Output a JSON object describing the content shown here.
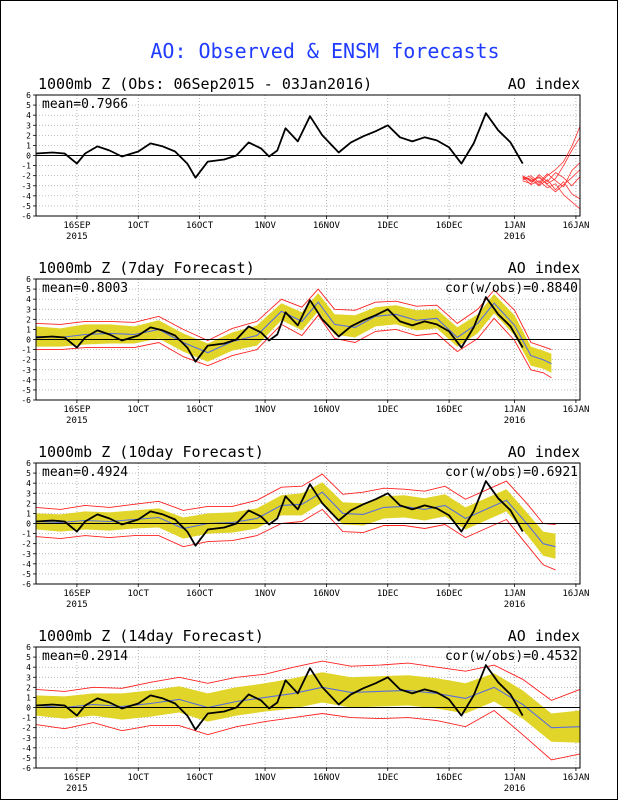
{
  "main_title": "AO: Observed & ENSM forecasts",
  "colors": {
    "title": "#1f3bff",
    "observed": "#000000",
    "ensemble_mean": "#5a6fd8",
    "spread_band": "#e2d52a",
    "min_max": "#ff2020",
    "members": "#ff3030"
  },
  "x_ticks": [
    {
      "label": "16SEP",
      "sub": "2015"
    },
    {
      "label": "1OCT",
      "sub": ""
    },
    {
      "label": "16OCT",
      "sub": ""
    },
    {
      "label": "1NOV",
      "sub": ""
    },
    {
      "label": "16NOV",
      "sub": ""
    },
    {
      "label": "1DEC",
      "sub": ""
    },
    {
      "label": "16DEC",
      "sub": ""
    },
    {
      "label": "1JAN",
      "sub": "2016"
    },
    {
      "label": "16JAN",
      "sub": ""
    }
  ],
  "y_ticks": [
    "6",
    "5",
    "4",
    "3",
    "2",
    "1",
    "0",
    "-1",
    "-2",
    "-3",
    "-4",
    "-5",
    "-6"
  ],
  "chart_data": [
    {
      "type": "line",
      "title": "1000mb Z (Obs: 06Sep2015 - 03Jan2016)",
      "right_label": "AO index",
      "mean_label": "mean=0.7966",
      "cor_label": "",
      "ylim": [
        -6,
        6
      ],
      "x_range": [
        "2015-09-06",
        "2016-01-17"
      ],
      "observed": {
        "x": [
          "2015-09-06",
          "2015-09-10",
          "2015-09-13",
          "2015-09-16",
          "2015-09-18",
          "2015-09-21",
          "2015-09-24",
          "2015-09-27",
          "2015-10-01",
          "2015-10-04",
          "2015-10-07",
          "2015-10-10",
          "2015-10-13",
          "2015-10-15",
          "2015-10-18",
          "2015-10-22",
          "2015-10-25",
          "2015-10-28",
          "2015-10-31",
          "2015-11-02",
          "2015-11-04",
          "2015-11-06",
          "2015-11-09",
          "2015-11-12",
          "2015-11-15",
          "2015-11-19",
          "2015-11-22",
          "2015-11-25",
          "2015-11-28",
          "2015-12-01",
          "2015-12-04",
          "2015-12-07",
          "2015-12-10",
          "2015-12-13",
          "2015-12-16",
          "2015-12-19",
          "2015-12-22",
          "2015-12-25",
          "2015-12-28",
          "2015-12-31",
          "2016-01-03"
        ],
        "y": [
          0.2,
          0.3,
          0.2,
          -0.8,
          0.2,
          0.9,
          0.5,
          -0.1,
          0.4,
          1.2,
          0.9,
          0.4,
          -0.8,
          -2.2,
          -0.6,
          -0.4,
          0,
          1.3,
          0.7,
          -0.1,
          0.5,
          2.7,
          1.4,
          3.9,
          2.0,
          0.3,
          1.3,
          1.9,
          2.4,
          3.0,
          1.8,
          1.4,
          1.8,
          1.5,
          0.8,
          -0.8,
          1.2,
          4.2,
          2.5,
          1.3,
          -0.8
        ]
      },
      "members": [
        {
          "x": [
            0,
            2,
            4,
            6,
            8,
            10,
            12,
            14
          ],
          "y": [
            -2.0,
            -2.6,
            -2.2,
            -2.8,
            -2.3,
            -1.0,
            0.5,
            1.8
          ]
        },
        {
          "x": [
            0,
            2,
            4,
            6,
            8,
            10,
            12,
            14
          ],
          "y": [
            -2.2,
            -2.4,
            -3.0,
            -2.4,
            -3.4,
            -2.6,
            -3.8,
            -4.3
          ]
        },
        {
          "x": [
            0,
            2,
            4,
            6,
            8,
            10,
            12,
            14
          ],
          "y": [
            -2.3,
            -2.0,
            -2.7,
            -1.8,
            -2.5,
            -3.1,
            -1.5,
            -0.7
          ]
        },
        {
          "x": [
            0,
            2,
            4,
            6,
            8,
            10,
            12,
            14
          ],
          "y": [
            -2.5,
            -2.8,
            -1.9,
            -2.6,
            -1.7,
            -2.2,
            -3.0,
            -2.1
          ]
        },
        {
          "x": [
            0,
            2,
            4,
            6,
            8,
            10,
            12,
            14
          ],
          "y": [
            -2.1,
            -2.9,
            -2.5,
            -3.2,
            -2.8,
            -3.9,
            -4.6,
            -5.3
          ]
        },
        {
          "x": [
            0,
            2,
            4,
            6,
            8,
            10,
            12,
            14
          ],
          "y": [
            -2.4,
            -2.2,
            -2.9,
            -2.0,
            -1.4,
            -0.6,
            0.9,
            2.9
          ]
        },
        {
          "x": [
            0,
            2,
            4,
            6,
            8,
            10,
            12,
            14
          ],
          "y": [
            -2.0,
            -2.5,
            -2.1,
            -2.9,
            -3.6,
            -2.9,
            -2.2,
            -1.4
          ]
        }
      ]
    },
    {
      "type": "line",
      "title": "1000mb Z (7day Forecast)",
      "right_label": "AO index",
      "mean_label": "mean=0.8003",
      "cor_label": "cor(w/obs)=0.8840",
      "ylim": [
        -6,
        6
      ],
      "x_range": [
        "2015-09-06",
        "2016-01-17"
      ],
      "observed": {
        "x": [
          "2015-09-06",
          "2015-09-10",
          "2015-09-13",
          "2015-09-16",
          "2015-09-18",
          "2015-09-21",
          "2015-09-24",
          "2015-09-27",
          "2015-10-01",
          "2015-10-04",
          "2015-10-07",
          "2015-10-10",
          "2015-10-13",
          "2015-10-15",
          "2015-10-18",
          "2015-10-22",
          "2015-10-25",
          "2015-10-28",
          "2015-10-31",
          "2015-11-02",
          "2015-11-04",
          "2015-11-06",
          "2015-11-09",
          "2015-11-12",
          "2015-11-15",
          "2015-11-19",
          "2015-11-22",
          "2015-11-25",
          "2015-11-28",
          "2015-12-01",
          "2015-12-04",
          "2015-12-07",
          "2015-12-10",
          "2015-12-13",
          "2015-12-16",
          "2015-12-19",
          "2015-12-22",
          "2015-12-25",
          "2015-12-28",
          "2015-12-31",
          "2016-01-03"
        ],
        "y": [
          0.2,
          0.3,
          0.2,
          -0.8,
          0.2,
          0.9,
          0.5,
          -0.1,
          0.4,
          1.2,
          0.9,
          0.4,
          -0.8,
          -2.2,
          -0.6,
          -0.4,
          0,
          1.3,
          0.7,
          -0.1,
          0.5,
          2.7,
          1.4,
          3.9,
          2.0,
          0.3,
          1.3,
          1.9,
          2.4,
          3.0,
          1.8,
          1.4,
          1.8,
          1.5,
          0.8,
          -0.8,
          1.2,
          4.2,
          2.5,
          1.3,
          -0.8
        ]
      },
      "ens_mean": {
        "x": [
          "2015-09-06",
          "2015-09-12",
          "2015-09-18",
          "2015-09-24",
          "2015-09-30",
          "2015-10-06",
          "2015-10-12",
          "2015-10-18",
          "2015-10-24",
          "2015-10-30",
          "2015-11-05",
          "2015-11-10",
          "2015-11-14",
          "2015-11-18",
          "2015-11-23",
          "2015-11-28",
          "2015-12-03",
          "2015-12-08",
          "2015-12-13",
          "2015-12-18",
          "2015-12-23",
          "2015-12-27",
          "2016-01-01",
          "2016-01-05",
          "2016-01-08",
          "2016-01-10"
        ],
        "y": [
          0.3,
          0.2,
          0.5,
          0.6,
          0.5,
          1.0,
          -0.3,
          -1.3,
          -0.2,
          0.4,
          2.8,
          1.8,
          3.7,
          1.5,
          1.2,
          2.3,
          2.5,
          1.9,
          2.1,
          0.2,
          1.6,
          3.6,
          1.4,
          -1.6,
          -2.0,
          -2.4
        ]
      },
      "band_upper": [
        1.3,
        1.1,
        1.5,
        1.5,
        1.3,
        1.9,
        0.6,
        -0.4,
        0.7,
        1.4,
        3.6,
        2.7,
        4.6,
        2.5,
        2.4,
        3.2,
        3.4,
        2.9,
        3.0,
        1.2,
        2.5,
        4.5,
        2.4,
        -0.7,
        -1.1,
        -1.4
      ],
      "band_lower": [
        -0.7,
        -0.7,
        -0.5,
        -0.4,
        -0.4,
        0.1,
        -1.2,
        -2.2,
        -1.1,
        -0.6,
        1.9,
        0.9,
        2.8,
        0.5,
        0.2,
        1.3,
        1.5,
        0.9,
        1.1,
        -0.7,
        0.6,
        2.6,
        0.4,
        -2.6,
        -2.9,
        -3.3
      ],
      "max_line": [
        1.6,
        1.5,
        1.8,
        1.8,
        1.7,
        2.3,
        1.0,
        -0.1,
        1.1,
        1.8,
        4.0,
        3.2,
        5.0,
        3.0,
        2.9,
        3.7,
        3.8,
        3.3,
        3.4,
        1.6,
        3.0,
        4.9,
        2.9,
        -0.3,
        -0.7,
        -1.0
      ],
      "min_line": [
        -1.0,
        -1.0,
        -0.8,
        -0.8,
        -0.8,
        -0.3,
        -1.7,
        -2.6,
        -1.6,
        -1.0,
        1.5,
        0.4,
        2.4,
        0.1,
        -0.3,
        0.8,
        1.0,
        0.4,
        0.6,
        -1.2,
        0.1,
        2.1,
        -0.1,
        -3.0,
        -3.3,
        -3.8
      ]
    },
    {
      "type": "line",
      "title": "1000mb Z (10day Forecast)",
      "right_label": "AO index",
      "mean_label": "mean=0.4924",
      "cor_label": "cor(w/obs)=0.6921",
      "ylim": [
        -6,
        6
      ],
      "x_range": [
        "2015-09-06",
        "2016-01-17"
      ],
      "observed": {
        "x": [
          "2015-09-06",
          "2015-09-10",
          "2015-09-13",
          "2015-09-16",
          "2015-09-18",
          "2015-09-21",
          "2015-09-24",
          "2015-09-27",
          "2015-10-01",
          "2015-10-04",
          "2015-10-07",
          "2015-10-10",
          "2015-10-13",
          "2015-10-15",
          "2015-10-18",
          "2015-10-22",
          "2015-10-25",
          "2015-10-28",
          "2015-10-31",
          "2015-11-02",
          "2015-11-04",
          "2015-11-06",
          "2015-11-09",
          "2015-11-12",
          "2015-11-15",
          "2015-11-19",
          "2015-11-22",
          "2015-11-25",
          "2015-11-28",
          "2015-12-01",
          "2015-12-04",
          "2015-12-07",
          "2015-12-10",
          "2015-12-13",
          "2015-12-16",
          "2015-12-19",
          "2015-12-22",
          "2015-12-25",
          "2015-12-28",
          "2015-12-31",
          "2016-01-03"
        ],
        "y": [
          0.2,
          0.3,
          0.2,
          -0.8,
          0.2,
          0.9,
          0.5,
          -0.1,
          0.4,
          1.2,
          0.9,
          0.4,
          -0.8,
          -2.2,
          -0.6,
          -0.4,
          0,
          1.3,
          0.7,
          -0.1,
          0.5,
          2.7,
          1.4,
          3.9,
          2.0,
          0.3,
          1.3,
          1.9,
          2.4,
          3.0,
          1.8,
          1.4,
          1.8,
          1.5,
          0.8,
          -0.8,
          1.2,
          4.2,
          2.5,
          1.3,
          -0.8
        ]
      },
      "ens_mean": {
        "x": [
          "2015-09-06",
          "2015-09-12",
          "2015-09-18",
          "2015-09-24",
          "2015-09-30",
          "2015-10-06",
          "2015-10-12",
          "2015-10-18",
          "2015-10-24",
          "2015-10-30",
          "2015-11-05",
          "2015-11-10",
          "2015-11-15",
          "2015-11-20",
          "2015-11-25",
          "2015-11-30",
          "2015-12-05",
          "2015-12-10",
          "2015-12-15",
          "2015-12-20",
          "2015-12-25",
          "2015-12-30",
          "2016-01-04",
          "2016-01-08",
          "2016-01-11"
        ],
        "y": [
          0.2,
          0.1,
          0.3,
          0.2,
          0.4,
          0.6,
          -0.5,
          0.0,
          0.1,
          0.5,
          1.8,
          1.9,
          3.1,
          1.0,
          0.9,
          1.6,
          1.7,
          1.4,
          1.8,
          0.5,
          1.4,
          2.3,
          0.0,
          -2.0,
          -2.3
        ]
      },
      "band_upper": [
        1.0,
        0.9,
        1.2,
        1.1,
        1.3,
        1.5,
        0.6,
        1.0,
        1.1,
        1.5,
        2.8,
        3.0,
        4.1,
        2.1,
        2.0,
        2.7,
        2.8,
        2.5,
        2.9,
        1.6,
        2.5,
        3.4,
        1.1,
        -0.8,
        -1.0
      ],
      "band_lower": [
        -0.6,
        -0.8,
        -0.6,
        -0.7,
        -0.5,
        -0.4,
        -1.5,
        -1.0,
        -0.9,
        -0.5,
        0.8,
        0.8,
        2.1,
        -0.1,
        -0.2,
        0.5,
        0.6,
        0.3,
        0.7,
        -0.6,
        0.3,
        1.2,
        -1.1,
        -3.2,
        -3.5
      ],
      "max_line": [
        1.6,
        1.4,
        1.8,
        1.6,
        1.9,
        2.2,
        1.3,
        1.7,
        1.7,
        2.3,
        3.6,
        3.7,
        4.9,
        2.9,
        3.1,
        3.5,
        3.4,
        3.2,
        3.7,
        2.4,
        3.3,
        4.2,
        2.0,
        0.0,
        -0.1
      ],
      "min_line": [
        -1.3,
        -1.5,
        -1.2,
        -1.4,
        -1.2,
        -1.2,
        -2.3,
        -1.8,
        -1.7,
        -1.2,
        0.0,
        0.2,
        1.4,
        -0.8,
        -0.9,
        -0.2,
        -0.2,
        -0.5,
        -0.1,
        -1.4,
        -0.5,
        0.4,
        -2.1,
        -4.1,
        -4.6
      ]
    },
    {
      "type": "line",
      "title": "1000mb Z (14day Forecast)",
      "right_label": "AO index",
      "mean_label": "mean=0.2914",
      "cor_label": "cor(w/obs)=0.4532",
      "ylim": [
        -6,
        6
      ],
      "x_range": [
        "2015-09-06",
        "2016-01-17"
      ],
      "observed": {
        "x": [
          "2015-09-06",
          "2015-09-10",
          "2015-09-13",
          "2015-09-16",
          "2015-09-18",
          "2015-09-21",
          "2015-09-24",
          "2015-09-27",
          "2015-10-01",
          "2015-10-04",
          "2015-10-07",
          "2015-10-10",
          "2015-10-13",
          "2015-10-15",
          "2015-10-18",
          "2015-10-22",
          "2015-10-25",
          "2015-10-28",
          "2015-10-31",
          "2015-11-02",
          "2015-11-04",
          "2015-11-06",
          "2015-11-09",
          "2015-11-12",
          "2015-11-15",
          "2015-11-19",
          "2015-11-22",
          "2015-11-25",
          "2015-11-28",
          "2015-12-01",
          "2015-12-04",
          "2015-12-07",
          "2015-12-10",
          "2015-12-13",
          "2015-12-16",
          "2015-12-19",
          "2015-12-22",
          "2015-12-25",
          "2015-12-28",
          "2015-12-31",
          "2016-01-03"
        ],
        "y": [
          0.2,
          0.3,
          0.2,
          -0.8,
          0.2,
          0.9,
          0.5,
          -0.1,
          0.4,
          1.2,
          0.9,
          0.4,
          -0.8,
          -2.2,
          -0.6,
          -0.4,
          0,
          1.3,
          0.7,
          -0.1,
          0.5,
          2.7,
          1.4,
          3.9,
          2.0,
          0.3,
          1.3,
          1.9,
          2.4,
          3.0,
          1.8,
          1.4,
          1.8,
          1.5,
          0.8,
          -0.8,
          1.2,
          4.2,
          2.5,
          1.3,
          -0.8
        ]
      },
      "ens_mean": {
        "x": [
          "2015-09-06",
          "2015-09-13",
          "2015-09-20",
          "2015-09-27",
          "2015-10-04",
          "2015-10-11",
          "2015-10-18",
          "2015-10-25",
          "2015-11-01",
          "2015-11-08",
          "2015-11-15",
          "2015-11-22",
          "2015-11-29",
          "2015-12-06",
          "2015-12-13",
          "2015-12-20",
          "2015-12-27",
          "2016-01-03",
          "2016-01-10",
          "2016-01-17"
        ],
        "y": [
          0.2,
          0.0,
          0.3,
          0.1,
          0.4,
          0.8,
          0.0,
          0.6,
          1.0,
          1.4,
          2.0,
          1.5,
          1.6,
          1.7,
          1.4,
          0.9,
          2.0,
          0.3,
          -2.0,
          -1.9
        ]
      },
      "band_upper": [
        1.2,
        1.1,
        1.4,
        1.4,
        1.7,
        2.1,
        1.4,
        2.0,
        2.4,
        2.9,
        3.5,
        3.0,
        3.1,
        3.2,
        2.9,
        2.4,
        3.4,
        1.7,
        -0.6,
        -0.3
      ],
      "band_lower": [
        -0.8,
        -1.1,
        -0.8,
        -1.2,
        -0.9,
        -0.5,
        -1.4,
        -0.8,
        -0.4,
        -0.1,
        0.5,
        0.0,
        0.1,
        0.2,
        -0.1,
        -0.6,
        0.6,
        -1.1,
        -3.4,
        -3.5
      ],
      "max_line": [
        1.8,
        1.6,
        2.0,
        1.9,
        2.5,
        3.0,
        2.4,
        3.0,
        3.3,
        4.0,
        4.6,
        4.1,
        4.2,
        4.4,
        4.0,
        3.6,
        4.2,
        2.8,
        0.7,
        1.8
      ],
      "min_line": [
        -1.7,
        -2.1,
        -1.5,
        -2.3,
        -1.8,
        -1.8,
        -2.7,
        -1.9,
        -1.4,
        -1.0,
        -0.6,
        -1.0,
        -1.1,
        -1.0,
        -1.3,
        -1.9,
        -0.3,
        -2.7,
        -5.2,
        -4.6
      ]
    }
  ]
}
